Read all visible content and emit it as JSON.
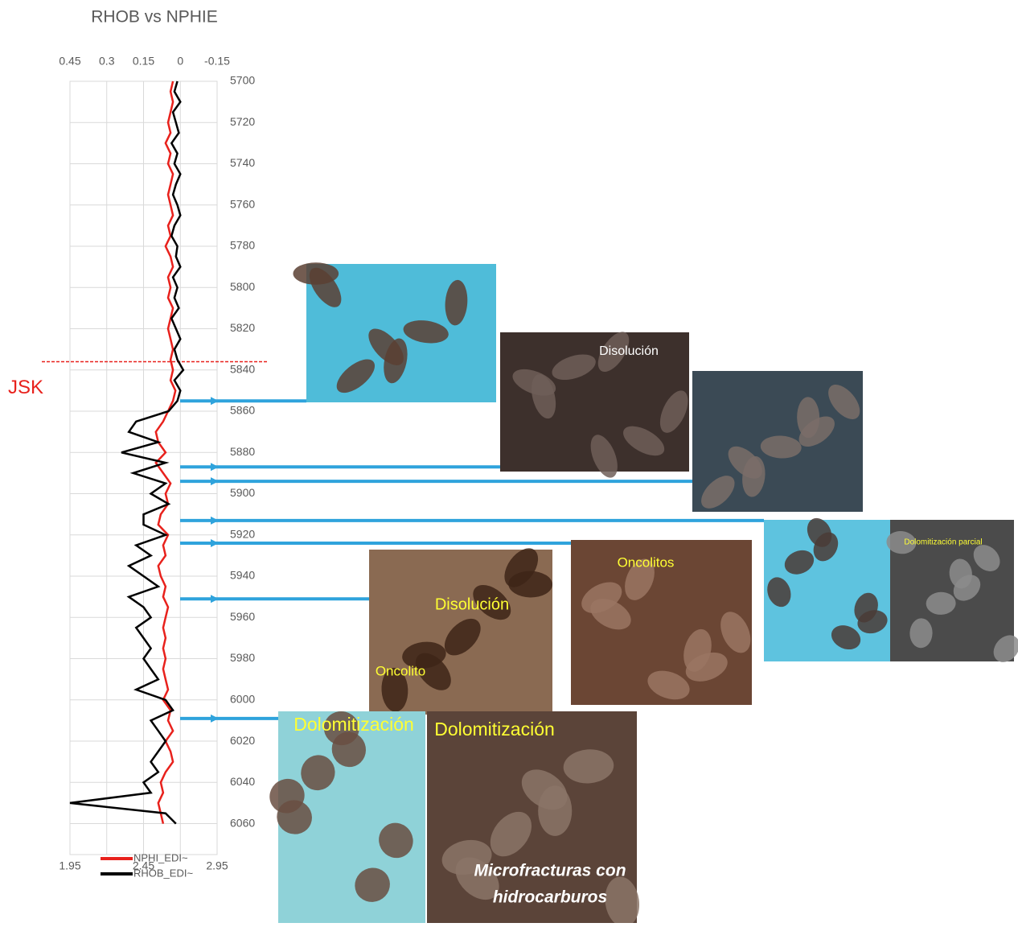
{
  "chart_data": {
    "type": "log",
    "title": "RHOB vs NPHIE",
    "depth": [
      5700,
      5705,
      5710,
      5715,
      5720,
      5725,
      5730,
      5735,
      5740,
      5745,
      5750,
      5755,
      5760,
      5765,
      5770,
      5775,
      5780,
      5785,
      5790,
      5795,
      5800,
      5805,
      5810,
      5815,
      5820,
      5825,
      5830,
      5835,
      5840,
      5845,
      5850,
      5855,
      5860,
      5865,
      5870,
      5875,
      5880,
      5885,
      5890,
      5895,
      5900,
      5905,
      5910,
      5915,
      5920,
      5925,
      5930,
      5935,
      5940,
      5945,
      5950,
      5955,
      5960,
      5965,
      5970,
      5975,
      5980,
      5985,
      5990,
      5995,
      6000,
      6005,
      6010,
      6015,
      6020,
      6025,
      6030,
      6035,
      6040,
      6045,
      6050,
      6055,
      6060
    ],
    "series": [
      {
        "name": "NPHI_EDI~",
        "color": "#e8211c",
        "axis": "x",
        "values": [
          0.03,
          0.04,
          0.03,
          0.04,
          0.05,
          0.04,
          0.06,
          0.04,
          0.05,
          0.03,
          0.04,
          0.05,
          0.04,
          0.03,
          0.05,
          0.04,
          0.06,
          0.04,
          0.03,
          0.05,
          0.04,
          0.05,
          0.03,
          0.04,
          0.05,
          0.04,
          0.03,
          0.04,
          0.03,
          0.04,
          0.02,
          0.03,
          0.05,
          0.07,
          0.1,
          0.09,
          0.06,
          0.1,
          0.07,
          0.04,
          0.06,
          0.05,
          0.08,
          0.09,
          0.05,
          0.07,
          0.06,
          0.09,
          0.08,
          0.06,
          0.07,
          0.05,
          0.06,
          0.07,
          0.06,
          0.07,
          0.06,
          0.07,
          0.06,
          0.05,
          0.07,
          0.04,
          0.05,
          0.03,
          0.06,
          0.04,
          0.03,
          0.06,
          0.08,
          0.07,
          0.09,
          0.08,
          0.07
        ]
      },
      {
        "name": "RHOB_EDI~",
        "color": "#000000",
        "axis": "x2",
        "values": [
          2.68,
          2.66,
          2.7,
          2.65,
          2.67,
          2.69,
          2.64,
          2.68,
          2.66,
          2.7,
          2.67,
          2.65,
          2.68,
          2.7,
          2.66,
          2.64,
          2.68,
          2.67,
          2.7,
          2.65,
          2.68,
          2.66,
          2.69,
          2.64,
          2.67,
          2.7,
          2.66,
          2.68,
          2.72,
          2.66,
          2.7,
          2.68,
          2.62,
          2.4,
          2.35,
          2.55,
          2.3,
          2.6,
          2.38,
          2.6,
          2.5,
          2.62,
          2.45,
          2.45,
          2.6,
          2.4,
          2.5,
          2.35,
          2.45,
          2.55,
          2.35,
          2.45,
          2.5,
          2.4,
          2.45,
          2.5,
          2.45,
          2.5,
          2.55,
          2.4,
          2.6,
          2.65,
          2.5,
          2.55,
          2.6,
          2.55,
          2.5,
          2.55,
          2.45,
          2.5,
          1.95,
          2.6,
          2.67
        ]
      }
    ],
    "xlim": [
      0.45,
      -0.15
    ],
    "xticks": [
      0.45,
      0.3,
      0.15,
      0,
      -0.15
    ],
    "x2lim": [
      1.95,
      2.95
    ],
    "x2ticks": [
      1.95,
      2.45,
      2.95
    ],
    "ylim": [
      5700,
      6075
    ],
    "yticks": [
      5700,
      5720,
      5740,
      5760,
      5780,
      5800,
      5820,
      5840,
      5860,
      5880,
      5900,
      5920,
      5940,
      5960,
      5980,
      6000,
      6020,
      6040,
      6060
    ],
    "grid": true,
    "formation_top": {
      "label": "JSK",
      "depth": 5836,
      "color": "#e8211c"
    },
    "sample_depths": [
      5855,
      5887,
      5894,
      5913,
      5924,
      5951,
      6009
    ],
    "arrow_color": "#2fa3dc",
    "photo_labels": [
      "Disolución",
      "Dolomitización parcial",
      "Oncolitos",
      "Disolución",
      "Oncolito",
      "Dolomitización",
      "Dolomitización",
      "Microfracturas con",
      "hidrocarburos"
    ]
  }
}
